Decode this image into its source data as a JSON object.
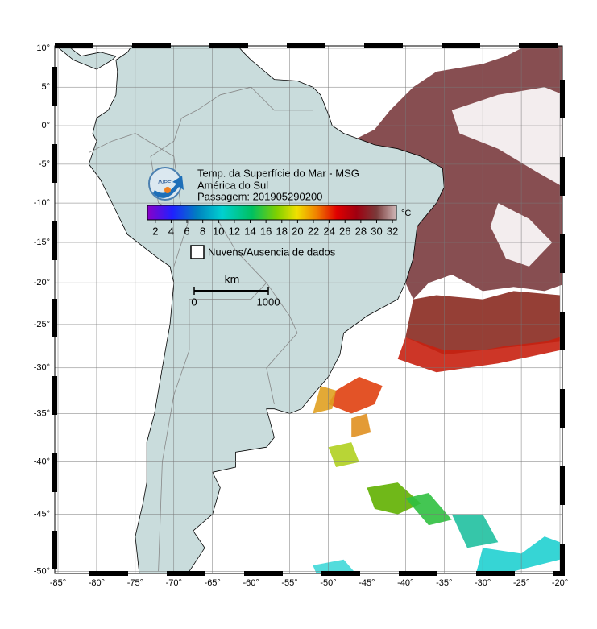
{
  "map": {
    "title_lines": [
      "Temp. da Superfície do Mar - MSG",
      "América do Sul",
      "Passagem: 201905290200"
    ],
    "logo": "INPE",
    "colorbar": {
      "ticks": [
        2,
        4,
        6,
        8,
        10,
        12,
        14,
        16,
        18,
        20,
        22,
        24,
        26,
        28,
        30,
        32
      ],
      "unit": "°C"
    },
    "legend": "Nuvens/Ausencia de dados",
    "scale": {
      "unit": "km",
      "ticks": [
        0,
        1000
      ]
    },
    "lon_ticks": [
      {
        "value": -85,
        "label": "-85°"
      },
      {
        "value": -80,
        "label": "-80°"
      },
      {
        "value": -75,
        "label": "-75°"
      },
      {
        "value": -70,
        "label": "-70°"
      },
      {
        "value": -65,
        "label": "-65°"
      },
      {
        "value": -60,
        "label": "-60°"
      },
      {
        "value": -55,
        "label": "-55°"
      },
      {
        "value": -50,
        "label": "-50°"
      },
      {
        "value": -45,
        "label": "-45°"
      },
      {
        "value": -40,
        "label": "-40°"
      },
      {
        "value": -35,
        "label": "-35°"
      },
      {
        "value": -30,
        "label": "-30°"
      },
      {
        "value": -25,
        "label": "-25°"
      },
      {
        "value": -20,
        "label": "-20°"
      }
    ],
    "lat_ticks": [
      {
        "value": 10,
        "label": "10°"
      },
      {
        "value": 5,
        "label": "5°"
      },
      {
        "value": 0,
        "label": "0°"
      },
      {
        "value": -5,
        "label": "-5°"
      },
      {
        "value": -10,
        "label": "-10°"
      },
      {
        "value": -15,
        "label": "-15°"
      },
      {
        "value": -20,
        "label": "-20°"
      },
      {
        "value": -25,
        "label": "-25°"
      },
      {
        "value": -30,
        "label": "-30°"
      },
      {
        "value": -35,
        "label": "-35°"
      },
      {
        "value": -40,
        "label": "-40°"
      },
      {
        "value": -45,
        "label": "-45°"
      },
      {
        "value": -50,
        "label": "-50°"
      }
    ]
  }
}
